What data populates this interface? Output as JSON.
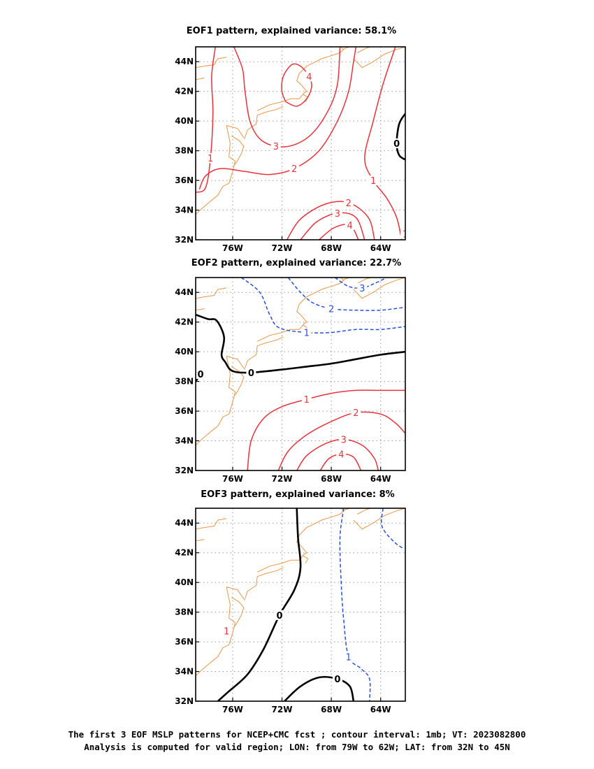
{
  "figure": {
    "caption_line1": "The first 3 EOF MSLP patterns for NCEP+CMC fcst ; contour interval: 1mb; VT: 2023082800",
    "caption_line2": "Analysis is computed for valid region; LON: from 79W to 62W; LAT: from 32N to 45N"
  },
  "colors": {
    "positive": "#e8323c",
    "negative": "#2a4fd8",
    "zero": "#000000",
    "coastline": "#e8964a",
    "grid": "#999999"
  },
  "chart_data": [
    {
      "type": "contour",
      "title": "EOF1 pattern, explained variance: 58.1%",
      "xlim": [
        -79,
        -62
      ],
      "ylim": [
        32,
        45
      ],
      "x_ticks": [
        -76,
        -72,
        -68,
        -64
      ],
      "x_tick_labels": [
        "76W",
        "72W",
        "68W",
        "64W"
      ],
      "y_ticks": [
        32,
        34,
        36,
        38,
        40,
        42,
        44
      ],
      "y_tick_labels": [
        "32N",
        "34N",
        "36N",
        "38N",
        "40N",
        "42N",
        "44N"
      ],
      "grid": true,
      "contour_interval": 1,
      "contours": [
        {
          "level": 4,
          "label": "4",
          "style": "solid",
          "points": [
            [
              -71.7,
              41.3
            ],
            [
              -72.0,
              42.0
            ],
            [
              -71.9,
              43.0
            ],
            [
              -71.2,
              43.8
            ],
            [
              -70.5,
              43.7
            ],
            [
              -69.8,
              43.0
            ],
            [
              -69.6,
              42.3
            ],
            [
              -70.0,
              41.5
            ],
            [
              -70.8,
              41.0
            ],
            [
              -71.7,
              41.3
            ]
          ]
        },
        {
          "level": 3,
          "label": "3",
          "style": "solid",
          "points": [
            [
              -75.9,
              45.0
            ],
            [
              -75.2,
              43.5
            ],
            [
              -75.0,
              42.0
            ],
            [
              -74.6,
              40.0
            ],
            [
              -73.8,
              38.8
            ],
            [
              -72.5,
              38.3
            ],
            [
              -71.0,
              38.4
            ],
            [
              -69.5,
              39.2
            ],
            [
              -68.2,
              40.8
            ],
            [
              -67.5,
              42.5
            ],
            [
              -67.3,
              45.0
            ]
          ]
        },
        {
          "level": 2,
          "label": "2",
          "style": "solid",
          "points": [
            [
              -78.7,
              35.4
            ],
            [
              -78.2,
              36.3
            ],
            [
              -77.0,
              36.8
            ],
            [
              -75.0,
              36.6
            ],
            [
              -73.0,
              36.4
            ],
            [
              -71.0,
              36.8
            ],
            [
              -69.0,
              38.0
            ],
            [
              -67.5,
              40.0
            ],
            [
              -66.6,
              42.0
            ],
            [
              -66.2,
              44.0
            ],
            [
              -66.0,
              45.0
            ]
          ]
        },
        {
          "level": 1,
          "label": "1",
          "style": "solid",
          "points": [
            [
              -77.4,
              45.0
            ],
            [
              -77.7,
              43.0
            ],
            [
              -77.6,
              40.5
            ],
            [
              -77.8,
              37.5
            ],
            [
              -78.2,
              35.5
            ],
            [
              -79.0,
              35.2
            ]
          ]
        },
        {
          "level": 1,
          "label": "1",
          "style": "solid",
          "points": [
            [
              -62.8,
              45.0
            ],
            [
              -63.8,
              42.5
            ],
            [
              -64.6,
              40.0
            ],
            [
              -65.3,
              37.5
            ],
            [
              -64.6,
              36.0
            ],
            [
              -63.5,
              34.8
            ],
            [
              -62.7,
              33.5
            ],
            [
              -62.3,
              32.0
            ]
          ]
        },
        {
          "level": 2,
          "label": "2",
          "style": "solid",
          "points": [
            [
              -71.6,
              32.0
            ],
            [
              -70.5,
              33.4
            ],
            [
              -68.5,
              34.4
            ],
            [
              -66.6,
              34.5
            ],
            [
              -65.0,
              33.5
            ],
            [
              -64.5,
              32.0
            ]
          ]
        },
        {
          "level": 3,
          "label": "3",
          "style": "solid",
          "points": [
            [
              -70.5,
              32.0
            ],
            [
              -69.2,
              33.2
            ],
            [
              -67.5,
              33.8
            ],
            [
              -66.0,
              33.5
            ],
            [
              -65.3,
              32.0
            ]
          ]
        },
        {
          "level": 4,
          "label": "4",
          "style": "solid",
          "points": [
            [
              -69.0,
              32.0
            ],
            [
              -67.8,
              32.8
            ],
            [
              -66.5,
              33.0
            ],
            [
              -65.8,
              32.0
            ]
          ]
        },
        {
          "level": 1,
          "label": "1",
          "style": "solid",
          "points": [
            [
              -62.4,
              32.7
            ],
            [
              -62.0,
              32.4
            ]
          ]
        },
        {
          "level": 0,
          "label": "0",
          "style": "solid",
          "points": [
            [
              -62.0,
              40.5
            ],
            [
              -62.5,
              39.8
            ],
            [
              -62.7,
              38.5
            ],
            [
              -62.5,
              37.7
            ],
            [
              -62.0,
              37.4
            ]
          ]
        }
      ]
    },
    {
      "type": "contour",
      "title": "EOF2 pattern, explained variance: 22.7%",
      "xlim": [
        -79,
        -62
      ],
      "ylim": [
        32,
        45
      ],
      "x_ticks": [
        -76,
        -72,
        -68,
        -64
      ],
      "x_tick_labels": [
        "76W",
        "72W",
        "68W",
        "64W"
      ],
      "y_ticks": [
        32,
        34,
        36,
        38,
        40,
        42,
        44
      ],
      "y_tick_labels": [
        "32N",
        "34N",
        "36N",
        "38N",
        "40N",
        "42N",
        "44N"
      ],
      "grid": true,
      "contour_interval": 1,
      "contours": [
        {
          "level": -1,
          "label": "-1",
          "style": "dashed",
          "points": [
            [
              -75.3,
              45.0
            ],
            [
              -73.8,
              44.0
            ],
            [
              -73.0,
              42.5
            ],
            [
              -72.2,
              41.6
            ],
            [
              -70.0,
              41.3
            ],
            [
              -68.0,
              41.3
            ],
            [
              -66.0,
              41.5
            ],
            [
              -64.0,
              41.5
            ],
            [
              -62.0,
              41.7
            ]
          ]
        },
        {
          "level": -2,
          "label": "-2",
          "style": "dashed",
          "points": [
            [
              -71.5,
              45.0
            ],
            [
              -70.5,
              44.0
            ],
            [
              -69.5,
              43.3
            ],
            [
              -68.0,
              42.9
            ],
            [
              -66.0,
              42.8
            ],
            [
              -64.0,
              42.8
            ],
            [
              -62.0,
              43.0
            ]
          ]
        },
        {
          "level": -3,
          "label": "-3",
          "style": "dashed",
          "points": [
            [
              -67.7,
              45.0
            ],
            [
              -66.6,
              44.4
            ],
            [
              -65.5,
              44.3
            ],
            [
              -64.5,
              44.6
            ],
            [
              -63.5,
              45.0
            ]
          ]
        },
        {
          "level": 0,
          "label": "0",
          "style": "solid",
          "points": [
            [
              -79.0,
              42.5
            ],
            [
              -78.0,
              42.2
            ],
            [
              -77.3,
              42.1
            ],
            [
              -76.7,
              41.0
            ],
            [
              -76.9,
              39.8
            ],
            [
              -76.6,
              39.3
            ],
            [
              -76.0,
              38.7
            ],
            [
              -74.5,
              38.6
            ],
            [
              -72.0,
              38.8
            ],
            [
              -70.0,
              39.0
            ],
            [
              -68.0,
              39.2
            ],
            [
              -66.0,
              39.5
            ],
            [
              -64.0,
              39.8
            ],
            [
              -62.0,
              40.0
            ]
          ]
        },
        {
          "level": 0,
          "label": "0",
          "style": "solid",
          "points": [
            [
              -79.0,
              38.0
            ],
            [
              -78.6,
              38.5
            ],
            [
              -78.3,
              38.8
            ]
          ]
        },
        {
          "level": 1,
          "label": "1",
          "style": "solid",
          "points": [
            [
              -74.8,
              32.0
            ],
            [
              -74.5,
              34.0
            ],
            [
              -73.5,
              35.5
            ],
            [
              -72.0,
              36.3
            ],
            [
              -70.0,
              36.8
            ],
            [
              -68.0,
              37.2
            ],
            [
              -66.0,
              37.4
            ],
            [
              -64.0,
              37.4
            ],
            [
              -62.0,
              37.4
            ]
          ]
        },
        {
          "level": 2,
          "label": "2",
          "style": "solid",
          "points": [
            [
              -72.3,
              32.0
            ],
            [
              -71.5,
              33.3
            ],
            [
              -70.0,
              34.4
            ],
            [
              -68.0,
              35.3
            ],
            [
              -66.0,
              35.9
            ],
            [
              -64.0,
              35.8
            ],
            [
              -62.8,
              35.2
            ],
            [
              -62.0,
              34.5
            ]
          ]
        },
        {
          "level": 3,
          "label": "3",
          "style": "solid",
          "points": [
            [
              -70.8,
              32.0
            ],
            [
              -70.0,
              33.0
            ],
            [
              -68.5,
              33.8
            ],
            [
              -67.0,
              34.1
            ],
            [
              -65.5,
              33.7
            ],
            [
              -64.5,
              32.8
            ],
            [
              -64.2,
              32.0
            ]
          ]
        },
        {
          "level": 4,
          "label": "4",
          "style": "solid",
          "points": [
            [
              -68.9,
              32.0
            ],
            [
              -68.2,
              32.8
            ],
            [
              -67.2,
              33.1
            ],
            [
              -66.2,
              32.9
            ],
            [
              -65.6,
              32.0
            ]
          ]
        }
      ]
    },
    {
      "type": "contour",
      "title": "EOF3 pattern, explained variance: 8%",
      "xlim": [
        -79,
        -62
      ],
      "ylim": [
        32,
        45
      ],
      "x_ticks": [
        -76,
        -72,
        -68,
        -64
      ],
      "x_tick_labels": [
        "76W",
        "72W",
        "68W",
        "64W"
      ],
      "y_ticks": [
        32,
        34,
        36,
        38,
        40,
        42,
        44
      ],
      "y_tick_labels": [
        "32N",
        "34N",
        "36N",
        "38N",
        "40N",
        "42N",
        "44N"
      ],
      "grid": true,
      "contour_interval": 1,
      "contours": [
        {
          "level": 0,
          "label": "0",
          "style": "solid",
          "points": [
            [
              -70.8,
              45.0
            ],
            [
              -70.7,
              43.0
            ],
            [
              -70.5,
              41.0
            ],
            [
              -71.0,
              39.5
            ],
            [
              -72.2,
              37.8
            ],
            [
              -73.5,
              35.5
            ],
            [
              -74.8,
              33.8
            ],
            [
              -76.4,
              32.6
            ],
            [
              -77.2,
              32.0
            ]
          ]
        },
        {
          "level": 0,
          "label": "0",
          "style": "solid",
          "points": [
            [
              -71.8,
              32.0
            ],
            [
              -70.5,
              33.0
            ],
            [
              -69.0,
              33.6
            ],
            [
              -67.5,
              33.5
            ],
            [
              -66.5,
              33.0
            ],
            [
              -66.2,
              32.0
            ]
          ]
        },
        {
          "level": -1,
          "label": "-1",
          "style": "dashed",
          "points": [
            [
              -67.0,
              45.0
            ],
            [
              -67.3,
              43.0
            ],
            [
              -67.2,
              40.0
            ],
            [
              -67.0,
              37.5
            ],
            [
              -66.6,
              35.0
            ],
            [
              -65.6,
              34.2
            ],
            [
              -64.9,
              33.5
            ],
            [
              -64.9,
              32.0
            ]
          ]
        },
        {
          "level": -1,
          "label": "",
          "style": "dashed",
          "points": [
            [
              -63.8,
              45.0
            ],
            [
              -63.9,
              43.8
            ],
            [
              -63.0,
              42.8
            ],
            [
              -62.2,
              42.3
            ]
          ]
        }
      ],
      "annotations": [
        {
          "text": "1",
          "x": -76.5,
          "y": 36.5
        }
      ]
    }
  ]
}
